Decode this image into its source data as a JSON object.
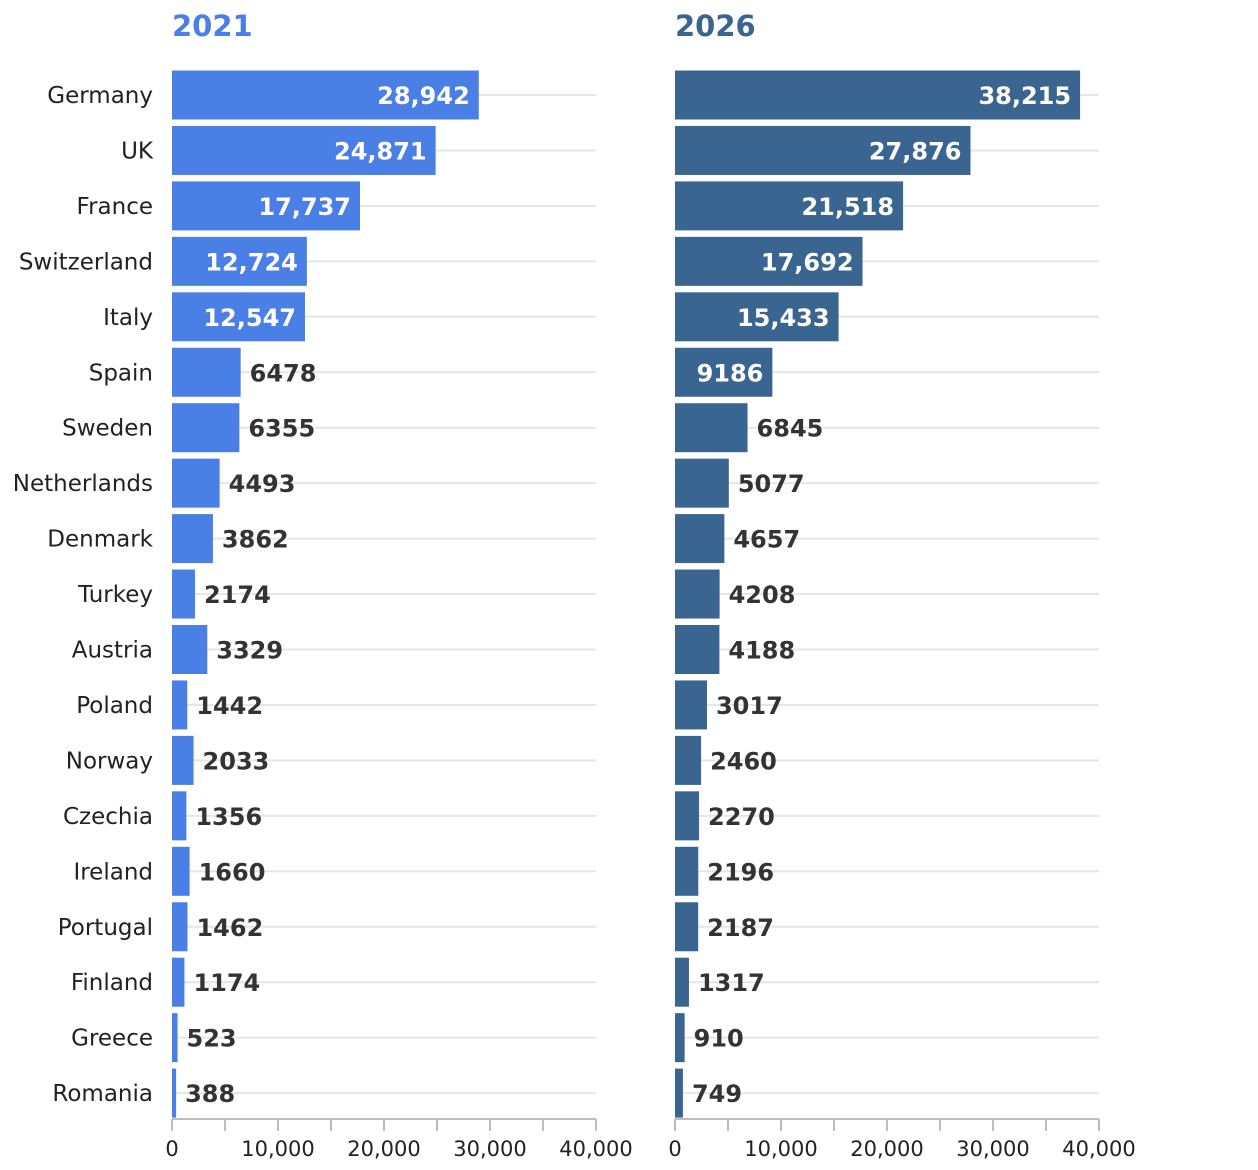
{
  "chart_data": [
    {
      "type": "bar",
      "orientation": "horizontal",
      "title": "2021",
      "color": "#4a7fe6",
      "categories": [
        "Germany",
        "UK",
        "France",
        "Switzerland",
        "Italy",
        "Spain",
        "Sweden",
        "Netherlands",
        "Denmark",
        "Turkey",
        "Austria",
        "Poland",
        "Norway",
        "Czechia",
        "Ireland",
        "Portugal",
        "Finland",
        "Greece",
        "Romania"
      ],
      "values": [
        28942,
        24871,
        17737,
        12724,
        12547,
        6478,
        6355,
        4493,
        3862,
        2174,
        3329,
        1442,
        2033,
        1356,
        1660,
        1462,
        1174,
        523,
        388
      ],
      "value_labels": [
        "28,942",
        "24,871",
        "17,737",
        "12,724",
        "12,547",
        "6478",
        "6355",
        "4493",
        "3862",
        "2174",
        "3329",
        "1442",
        "2033",
        "1356",
        "1660",
        "1462",
        "1174",
        "523",
        "388"
      ],
      "xlim": [
        0,
        40000
      ],
      "x_ticks": [
        0,
        10000,
        20000,
        30000,
        40000
      ],
      "x_tick_labels": [
        "0",
        "10,000",
        "20,000",
        "30,000",
        "40,000"
      ],
      "grid": true
    },
    {
      "type": "bar",
      "orientation": "horizontal",
      "title": "2026",
      "color": "#3a6591",
      "categories": [
        "Germany",
        "UK",
        "France",
        "Switzerland",
        "Italy",
        "Spain",
        "Sweden",
        "Netherlands",
        "Denmark",
        "Turkey",
        "Austria",
        "Poland",
        "Norway",
        "Czechia",
        "Ireland",
        "Portugal",
        "Finland",
        "Greece",
        "Romania"
      ],
      "values": [
        38215,
        27876,
        21518,
        17692,
        15433,
        9186,
        6845,
        5077,
        4657,
        4208,
        4188,
        3017,
        2460,
        2270,
        2196,
        2187,
        1317,
        910,
        749
      ],
      "value_labels": [
        "38,215",
        "27,876",
        "21,518",
        "17,692",
        "15,433",
        "9186",
        "6845",
        "5077",
        "4657",
        "4208",
        "4188",
        "3017",
        "2460",
        "2270",
        "2196",
        "2187",
        "1317",
        "910",
        "749"
      ],
      "xlim": [
        0,
        40000
      ],
      "x_ticks": [
        0,
        10000,
        20000,
        30000,
        40000
      ],
      "x_tick_labels": [
        "0",
        "10,000",
        "20,000",
        "30,000",
        "40,000"
      ],
      "grid": true
    }
  ]
}
